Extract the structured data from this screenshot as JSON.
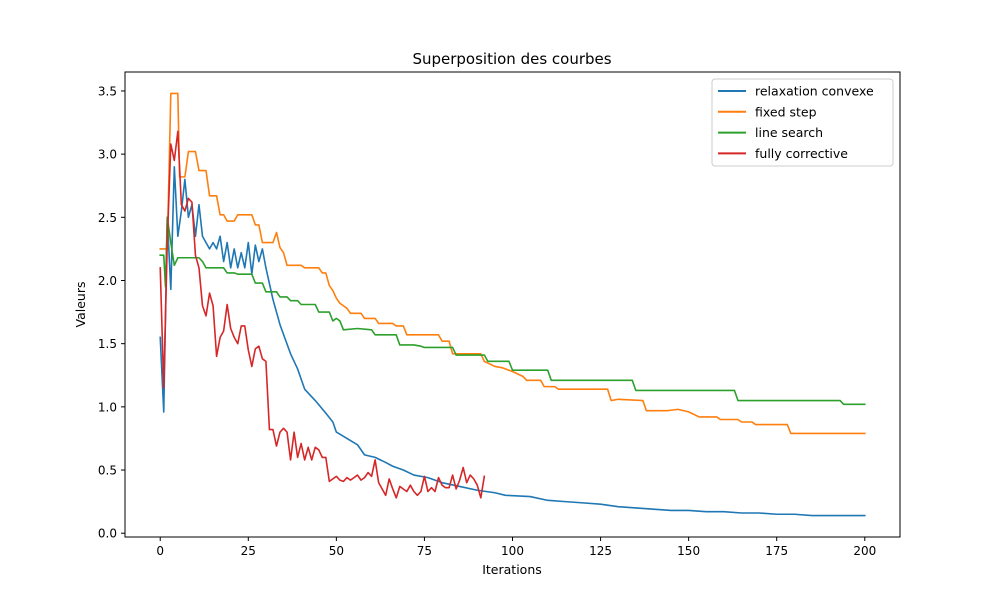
{
  "chart_data": {
    "type": "line",
    "title": "Superposition des courbes",
    "xlabel": "Iterations",
    "ylabel": "Valeurs",
    "xlim": [
      -10,
      210
    ],
    "ylim": [
      -0.03,
      3.65
    ],
    "xticks": [
      0,
      25,
      50,
      75,
      100,
      125,
      150,
      175,
      200
    ],
    "yticks": [
      0.0,
      0.5,
      1.0,
      1.5,
      2.0,
      2.5,
      3.0,
      3.5
    ],
    "grid": false,
    "legend_position": "top-right",
    "series": [
      {
        "name": "relaxation convexe",
        "color": "#1f77b4",
        "points": [
          [
            0,
            1.55
          ],
          [
            1,
            0.96
          ],
          [
            2,
            2.5
          ],
          [
            3,
            1.93
          ],
          [
            4,
            2.9
          ],
          [
            5,
            2.35
          ],
          [
            6,
            2.55
          ],
          [
            7,
            2.8
          ],
          [
            8,
            2.5
          ],
          [
            9,
            2.6
          ],
          [
            10,
            2.35
          ],
          [
            11,
            2.6
          ],
          [
            12,
            2.35
          ],
          [
            13,
            2.3
          ],
          [
            14,
            2.25
          ],
          [
            15,
            2.3
          ],
          [
            16,
            2.25
          ],
          [
            17,
            2.35
          ],
          [
            18,
            2.15
          ],
          [
            19,
            2.3
          ],
          [
            20,
            2.1
          ],
          [
            21,
            2.25
          ],
          [
            22,
            2.1
          ],
          [
            23,
            2.22
          ],
          [
            24,
            2.1
          ],
          [
            25,
            2.3
          ],
          [
            26,
            2.05
          ],
          [
            27,
            2.28
          ],
          [
            28,
            2.15
          ],
          [
            29,
            2.25
          ],
          [
            30,
            2.1
          ],
          [
            32,
            1.85
          ],
          [
            34,
            1.65
          ],
          [
            37,
            1.42
          ],
          [
            39,
            1.3
          ],
          [
            41,
            1.14
          ],
          [
            44,
            1.05
          ],
          [
            47,
            0.95
          ],
          [
            49,
            0.88
          ],
          [
            50,
            0.8
          ],
          [
            53,
            0.75
          ],
          [
            56,
            0.7
          ],
          [
            58,
            0.62
          ],
          [
            61,
            0.6
          ],
          [
            64,
            0.56
          ],
          [
            66,
            0.53
          ],
          [
            69,
            0.5
          ],
          [
            72,
            0.46
          ],
          [
            76,
            0.44
          ],
          [
            80,
            0.4
          ],
          [
            85,
            0.37
          ],
          [
            90,
            0.34
          ],
          [
            95,
            0.32
          ],
          [
            98,
            0.3
          ],
          [
            105,
            0.29
          ],
          [
            110,
            0.26
          ],
          [
            115,
            0.25
          ],
          [
            120,
            0.24
          ],
          [
            125,
            0.23
          ],
          [
            130,
            0.21
          ],
          [
            135,
            0.2
          ],
          [
            140,
            0.19
          ],
          [
            145,
            0.18
          ],
          [
            150,
            0.18
          ],
          [
            155,
            0.17
          ],
          [
            160,
            0.17
          ],
          [
            165,
            0.16
          ],
          [
            170,
            0.16
          ],
          [
            175,
            0.15
          ],
          [
            180,
            0.15
          ],
          [
            185,
            0.14
          ],
          [
            190,
            0.14
          ],
          [
            195,
            0.14
          ],
          [
            200,
            0.14
          ]
        ]
      },
      {
        "name": "fixed step",
        "color": "#ff7f0e",
        "points": [
          [
            0,
            2.25
          ],
          [
            1,
            2.25
          ],
          [
            2,
            2.25
          ],
          [
            3,
            3.48
          ],
          [
            5,
            3.48
          ],
          [
            5.5,
            2.82
          ],
          [
            7,
            2.82
          ],
          [
            8,
            3.02
          ],
          [
            10,
            3.02
          ],
          [
            11,
            2.87
          ],
          [
            13,
            2.87
          ],
          [
            14,
            2.67
          ],
          [
            16,
            2.67
          ],
          [
            17,
            2.52
          ],
          [
            18,
            2.52
          ],
          [
            19,
            2.47
          ],
          [
            21,
            2.47
          ],
          [
            22,
            2.52
          ],
          [
            26,
            2.52
          ],
          [
            27,
            2.44
          ],
          [
            28,
            2.44
          ],
          [
            29,
            2.3
          ],
          [
            32,
            2.3
          ],
          [
            33,
            2.38
          ],
          [
            34,
            2.26
          ],
          [
            35,
            2.22
          ],
          [
            36,
            2.12
          ],
          [
            40,
            2.12
          ],
          [
            41,
            2.1
          ],
          [
            45,
            2.1
          ],
          [
            46,
            2.06
          ],
          [
            47,
            2.06
          ],
          [
            48,
            1.96
          ],
          [
            49,
            1.92
          ],
          [
            50,
            1.86
          ],
          [
            51,
            1.82
          ],
          [
            53,
            1.78
          ],
          [
            54,
            1.74
          ],
          [
            57,
            1.74
          ],
          [
            58,
            1.7
          ],
          [
            61,
            1.7
          ],
          [
            62,
            1.66
          ],
          [
            66,
            1.66
          ],
          [
            67,
            1.64
          ],
          [
            69,
            1.64
          ],
          [
            70,
            1.57
          ],
          [
            79,
            1.57
          ],
          [
            80,
            1.52
          ],
          [
            82,
            1.52
          ],
          [
            83,
            1.42
          ],
          [
            91,
            1.42
          ],
          [
            92,
            1.36
          ],
          [
            95,
            1.32
          ],
          [
            97,
            1.31
          ],
          [
            100,
            1.28
          ],
          [
            103,
            1.24
          ],
          [
            104,
            1.21
          ],
          [
            108,
            1.21
          ],
          [
            109,
            1.16
          ],
          [
            112,
            1.16
          ],
          [
            113,
            1.14
          ],
          [
            127,
            1.14
          ],
          [
            128,
            1.05
          ],
          [
            130,
            1.06
          ],
          [
            137,
            1.05
          ],
          [
            138,
            0.97
          ],
          [
            144,
            0.97
          ],
          [
            147,
            0.98
          ],
          [
            150,
            0.96
          ],
          [
            153,
            0.92
          ],
          [
            158,
            0.92
          ],
          [
            159,
            0.9
          ],
          [
            164,
            0.9
          ],
          [
            165,
            0.88
          ],
          [
            168,
            0.88
          ],
          [
            169,
            0.86
          ],
          [
            178,
            0.86
          ],
          [
            179,
            0.79
          ],
          [
            200,
            0.79
          ]
        ]
      },
      {
        "name": "line search",
        "color": "#2ca02c",
        "points": [
          [
            0,
            2.2
          ],
          [
            1,
            2.2
          ],
          [
            1.5,
            1.95
          ],
          [
            2,
            2.5
          ],
          [
            3,
            2.3
          ],
          [
            4,
            2.12
          ],
          [
            5,
            2.18
          ],
          [
            11,
            2.18
          ],
          [
            12,
            2.15
          ],
          [
            13,
            2.1
          ],
          [
            18,
            2.1
          ],
          [
            19,
            2.06
          ],
          [
            21,
            2.06
          ],
          [
            22,
            2.05
          ],
          [
            26,
            2.05
          ],
          [
            27,
            1.98
          ],
          [
            29,
            1.98
          ],
          [
            30,
            1.91
          ],
          [
            33,
            1.91
          ],
          [
            34,
            1.87
          ],
          [
            36,
            1.87
          ],
          [
            37,
            1.84
          ],
          [
            39,
            1.84
          ],
          [
            40,
            1.81
          ],
          [
            44,
            1.81
          ],
          [
            45,
            1.75
          ],
          [
            48,
            1.75
          ],
          [
            49,
            1.68
          ],
          [
            50,
            1.7
          ],
          [
            51,
            1.68
          ],
          [
            52,
            1.61
          ],
          [
            56,
            1.62
          ],
          [
            60,
            1.61
          ],
          [
            61,
            1.57
          ],
          [
            67,
            1.57
          ],
          [
            68,
            1.49
          ],
          [
            72,
            1.49
          ],
          [
            74,
            1.48
          ],
          [
            75,
            1.47
          ],
          [
            83,
            1.47
          ],
          [
            84,
            1.41
          ],
          [
            87,
            1.41
          ],
          [
            88,
            1.41
          ],
          [
            92,
            1.41
          ],
          [
            93,
            1.36
          ],
          [
            99,
            1.36
          ],
          [
            100,
            1.29
          ],
          [
            110,
            1.29
          ],
          [
            111,
            1.21
          ],
          [
            134,
            1.21
          ],
          [
            135,
            1.13
          ],
          [
            161,
            1.13
          ],
          [
            163,
            1.13
          ],
          [
            164,
            1.05
          ],
          [
            193,
            1.05
          ],
          [
            194,
            1.02
          ],
          [
            200,
            1.02
          ]
        ]
      },
      {
        "name": "fully corrective",
        "color": "#d62728",
        "points": [
          [
            0,
            2.1
          ],
          [
            1,
            1.15
          ],
          [
            2,
            2.3
          ],
          [
            3,
            3.08
          ],
          [
            4,
            2.95
          ],
          [
            5,
            3.18
          ],
          [
            6,
            2.6
          ],
          [
            7,
            2.55
          ],
          [
            8,
            2.65
          ],
          [
            9,
            2.62
          ],
          [
            10,
            2.2
          ],
          [
            11,
            2.1
          ],
          [
            12,
            1.8
          ],
          [
            13,
            1.72
          ],
          [
            14,
            1.9
          ],
          [
            15,
            1.8
          ],
          [
            16,
            1.4
          ],
          [
            17,
            1.55
          ],
          [
            18,
            1.6
          ],
          [
            19,
            1.81
          ],
          [
            20,
            1.62
          ],
          [
            21,
            1.55
          ],
          [
            22,
            1.5
          ],
          [
            23,
            1.64
          ],
          [
            24,
            1.64
          ],
          [
            25,
            1.45
          ],
          [
            26,
            1.32
          ],
          [
            27,
            1.46
          ],
          [
            28,
            1.48
          ],
          [
            29,
            1.38
          ],
          [
            30,
            1.36
          ],
          [
            31,
            0.82
          ],
          [
            32,
            0.82
          ],
          [
            33,
            0.69
          ],
          [
            34,
            0.8
          ],
          [
            35,
            0.83
          ],
          [
            36,
            0.8
          ],
          [
            37,
            0.58
          ],
          [
            38,
            0.8
          ],
          [
            39,
            0.6
          ],
          [
            40,
            0.71
          ],
          [
            41,
            0.58
          ],
          [
            42,
            0.68
          ],
          [
            43,
            0.58
          ],
          [
            44,
            0.68
          ],
          [
            45,
            0.66
          ],
          [
            46,
            0.6
          ],
          [
            47,
            0.6
          ],
          [
            48,
            0.41
          ],
          [
            49,
            0.43
          ],
          [
            50,
            0.45
          ],
          [
            51,
            0.42
          ],
          [
            52,
            0.41
          ],
          [
            53,
            0.44
          ],
          [
            54,
            0.42
          ],
          [
            55,
            0.44
          ],
          [
            56,
            0.46
          ],
          [
            57,
            0.42
          ],
          [
            58,
            0.44
          ],
          [
            59,
            0.48
          ],
          [
            60,
            0.45
          ],
          [
            61,
            0.58
          ],
          [
            62,
            0.4
          ],
          [
            63,
            0.35
          ],
          [
            64,
            0.3
          ],
          [
            65,
            0.43
          ],
          [
            66,
            0.35
          ],
          [
            67,
            0.28
          ],
          [
            68,
            0.37
          ],
          [
            69,
            0.35
          ],
          [
            70,
            0.33
          ],
          [
            71,
            0.38
          ],
          [
            72,
            0.33
          ],
          [
            73,
            0.3
          ],
          [
            74,
            0.33
          ],
          [
            75,
            0.45
          ],
          [
            76,
            0.33
          ],
          [
            77,
            0.36
          ],
          [
            78,
            0.33
          ],
          [
            79,
            0.44
          ],
          [
            80,
            0.38
          ],
          [
            81,
            0.36
          ],
          [
            82,
            0.36
          ],
          [
            83,
            0.46
          ],
          [
            84,
            0.35
          ],
          [
            85,
            0.42
          ],
          [
            86,
            0.52
          ],
          [
            87,
            0.4
          ],
          [
            88,
            0.46
          ],
          [
            89,
            0.43
          ],
          [
            90,
            0.38
          ],
          [
            91,
            0.28
          ],
          [
            92,
            0.45
          ]
        ]
      }
    ]
  }
}
